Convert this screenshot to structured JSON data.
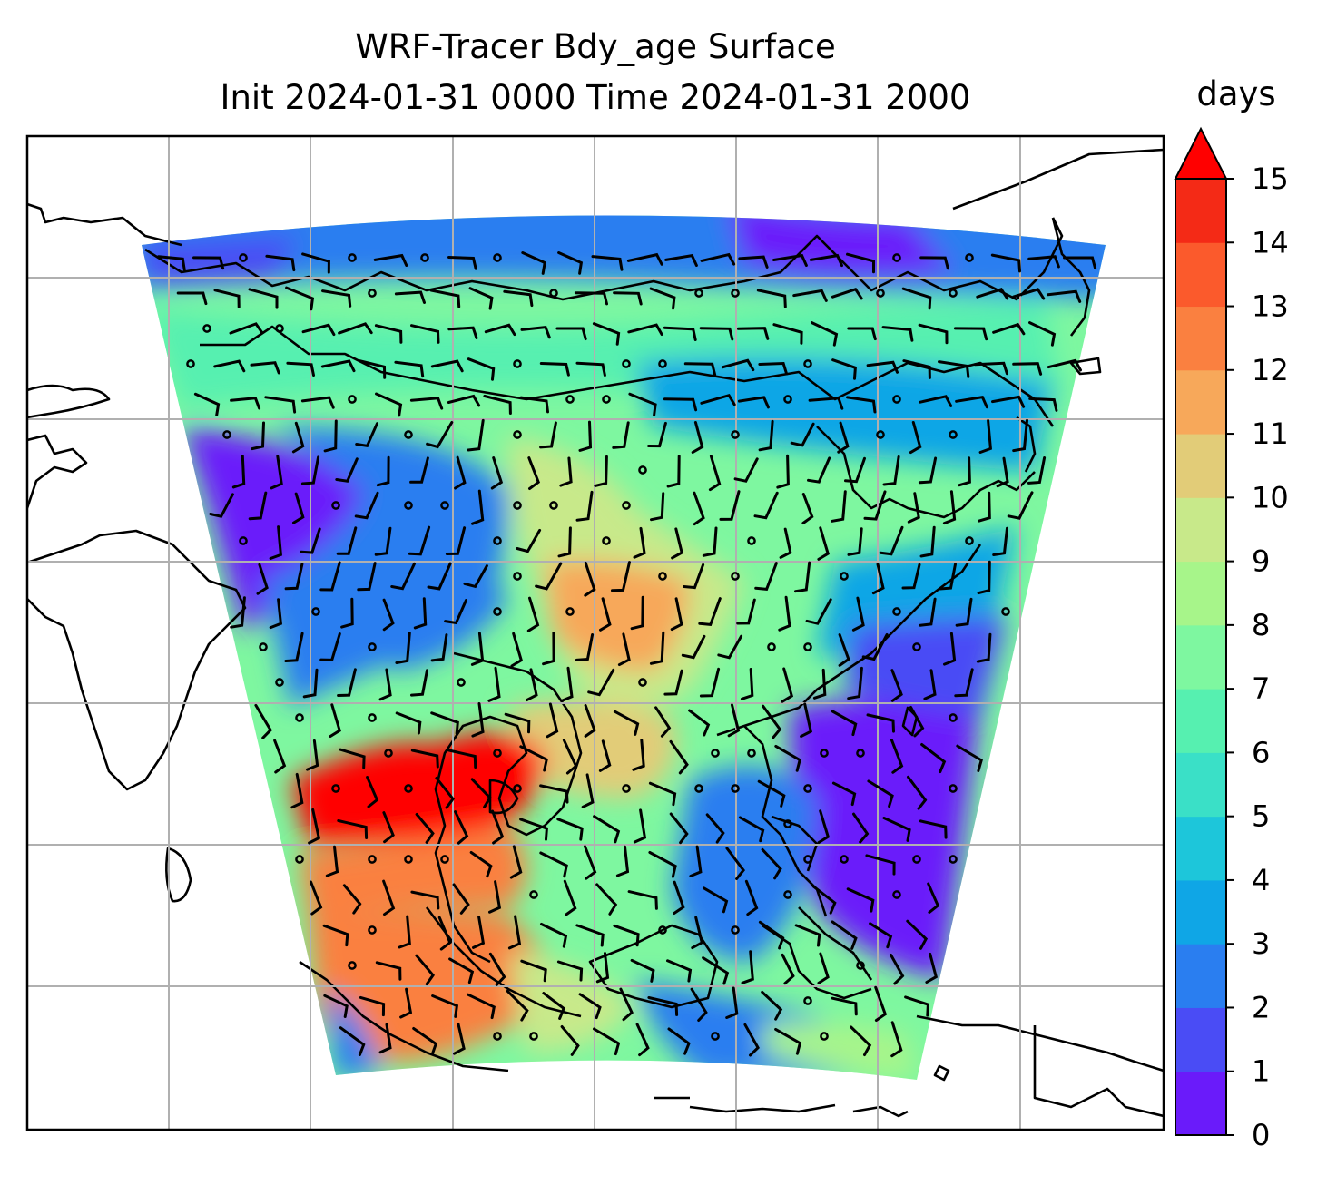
{
  "title_line1": "WRF-Tracer Bdy_age Surface",
  "title_line2": "Init 2024-01-31 0000 Time 2024-01-31 2000",
  "colorbar": {
    "label": "days",
    "min": 0,
    "max": 15,
    "extend": "max",
    "tick_labels": [
      "0",
      "1",
      "2",
      "3",
      "4",
      "5",
      "6",
      "7",
      "8",
      "9",
      "10",
      "11",
      "12",
      "13",
      "14",
      "15"
    ],
    "colors": [
      "#6a1bfa",
      "#4a4cf5",
      "#2a7ef0",
      "#0fa6e6",
      "#1dc6da",
      "#3ae0c7",
      "#56f0b0",
      "#7ef7a0",
      "#a7f58a",
      "#c8e98a",
      "#e2cc78",
      "#f7a85a",
      "#fa8040",
      "#fb5a2c",
      "#f42a16",
      "#ff0000"
    ]
  },
  "map": {
    "projection": "Lambert conformal",
    "gridlines": true,
    "coastlines": true,
    "wind_barbs": true,
    "variable": "Bdy_age",
    "level": "Surface"
  }
}
